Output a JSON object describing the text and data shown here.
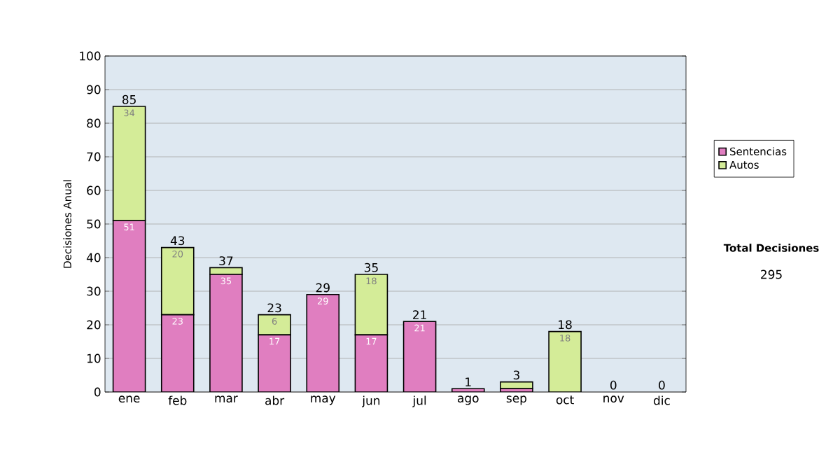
{
  "chart_data": {
    "type": "bar",
    "stacked": true,
    "categories": [
      "ene",
      "feb",
      "mar",
      "abr",
      "may",
      "jun",
      "jul",
      "ago",
      "sep",
      "oct",
      "nov",
      "dic"
    ],
    "ylabel": "Decisiones Anual",
    "ylim": [
      0,
      100
    ],
    "yticks": [
      0,
      10,
      20,
      30,
      40,
      50,
      60,
      70,
      80,
      90,
      100
    ],
    "grid": "y",
    "legend": "right",
    "series": [
      {
        "name": "Sentencias",
        "color": "#e07ec0",
        "values": [
          51,
          23,
          35,
          17,
          29,
          17,
          21,
          1,
          1,
          0,
          0,
          0
        ],
        "value_labels": [
          "51",
          "23",
          "35",
          "17",
          "29",
          "17",
          "21",
          null,
          null,
          null,
          null,
          null
        ]
      },
      {
        "name": "Autos",
        "color": "#d4ec98",
        "values": [
          34,
          20,
          2,
          6,
          0,
          18,
          0,
          0,
          2,
          18,
          0,
          0
        ],
        "value_labels": [
          "34",
          "20",
          null,
          "6",
          null,
          "18",
          null,
          null,
          null,
          "18",
          null,
          null
        ]
      }
    ],
    "totals": [
      "85",
      "43",
      "37",
      "23",
      "29",
      "35",
      "21",
      "1",
      "3",
      "18",
      "0",
      "0"
    ],
    "annotations": [
      "Total Decisiones",
      "295"
    ]
  }
}
